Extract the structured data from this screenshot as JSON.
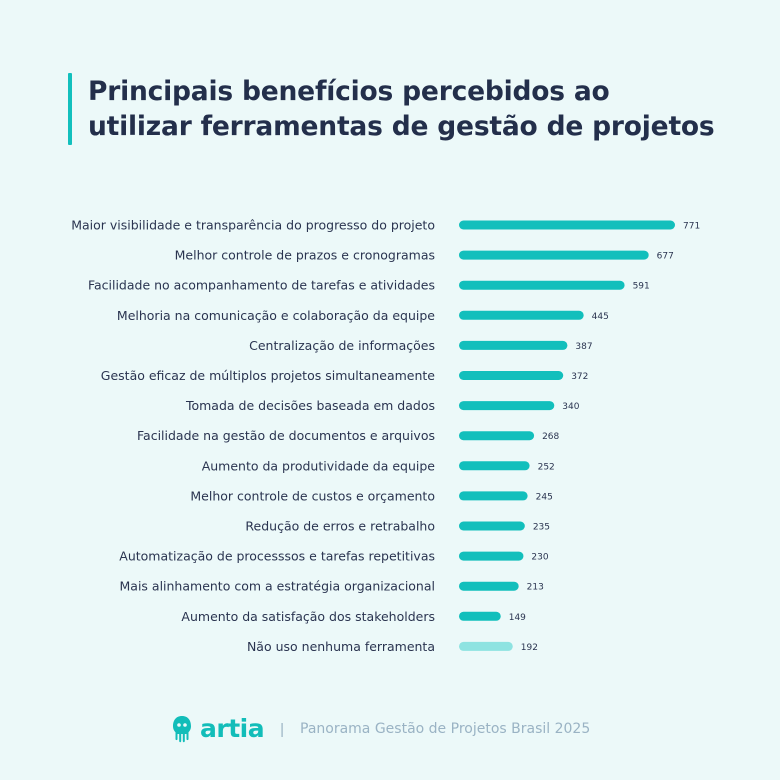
{
  "title_lines": [
    "Principais benefícios percebidos ao",
    "utilizar ferramentas de gestão de projetos"
  ],
  "chart_data": {
    "type": "bar",
    "orientation": "horizontal",
    "title": "Principais benefícios percebidos ao utilizar ferramentas de gestão de projetos",
    "categories": [
      "Maior visibilidade e transparência do progresso do projeto",
      "Melhor controle de prazos e cronogramas",
      "Facilidade no acompanhamento de tarefas e atividades",
      "Melhoria na comunicação e colaboração da equipe",
      "Centralização de informações",
      "Gestão eficaz de múltiplos projetos simultaneamente",
      "Tomada de decisões baseada em dados",
      "Facilidade na gestão de documentos e arquivos",
      "Aumento da produtividade da equipe",
      "Melhor controle de custos e orçamento",
      "Redução de erros e retrabalho",
      "Automatização de processsos e tarefas repetitivas",
      "Mais alinhamento com a estratégia organizacional",
      "Aumento da satisfação dos stakeholders",
      "Não uso nenhuma ferramenta"
    ],
    "values": [
      771,
      677,
      591,
      445,
      387,
      372,
      340,
      268,
      252,
      245,
      235,
      230,
      213,
      149,
      192
    ],
    "xlim": [
      0,
      771
    ],
    "grid": false,
    "data_labels": true,
    "colors": {
      "bar": "#12bfbc",
      "highlight_last": "#8ee3e1"
    }
  },
  "footer": {
    "logo_text": "artia",
    "separator": "|",
    "caption": "Panorama Gestão de Projetos Brasil 2025"
  },
  "colors": {
    "background": "#ecf9f9",
    "accent": "#12c0bd",
    "title": "#232f4b",
    "footer_text": "#9ab3c4"
  }
}
